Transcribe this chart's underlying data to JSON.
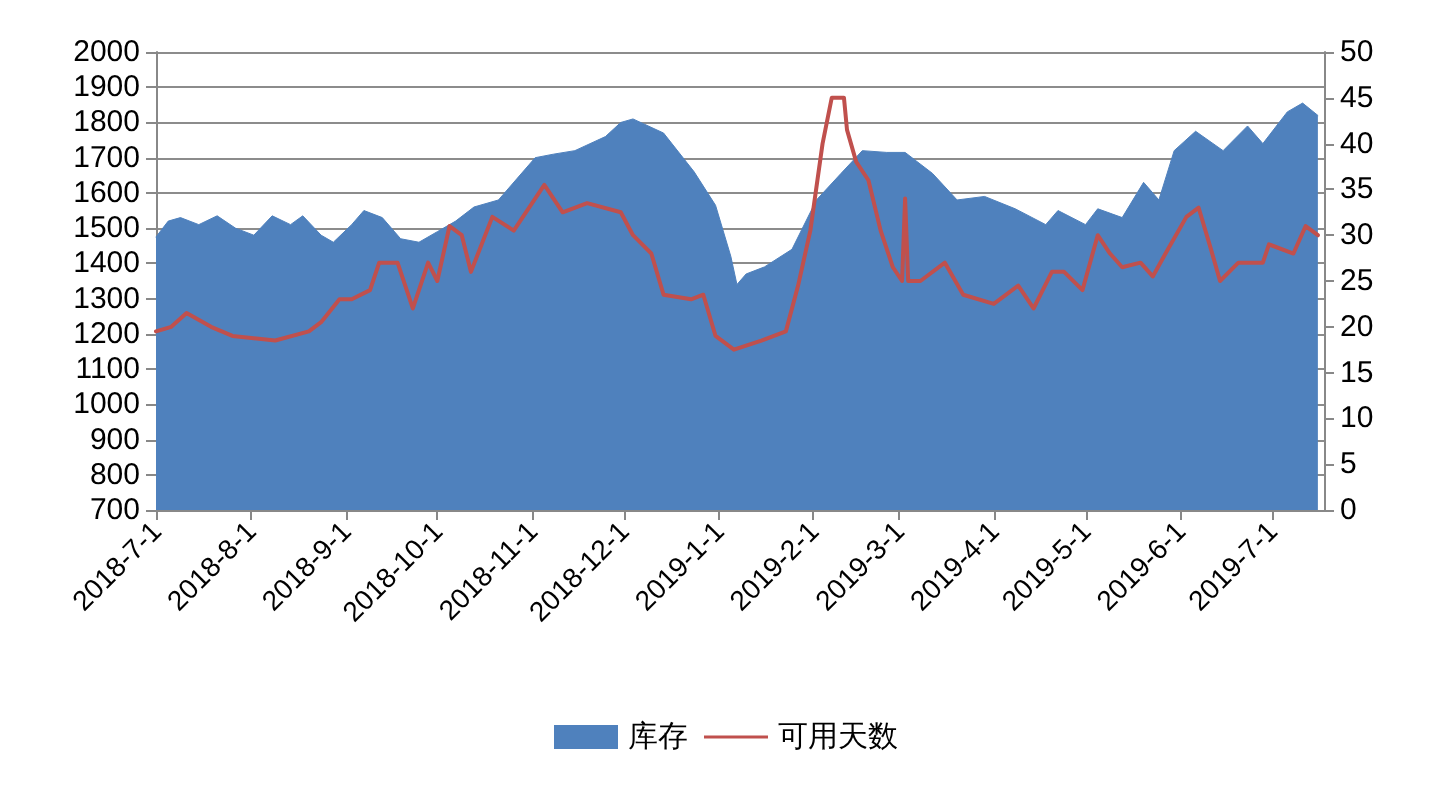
{
  "chart_data": {
    "type": "area",
    "xlim": [
      "2018-07-01",
      "2019-07-18"
    ],
    "xticks": [
      {
        "value": "2018-07-01",
        "label": "2018-7-1"
      },
      {
        "value": "2018-08-01",
        "label": "2018-8-1"
      },
      {
        "value": "2018-09-01",
        "label": "2018-9-1"
      },
      {
        "value": "2018-10-01",
        "label": "2018-10-1"
      },
      {
        "value": "2018-11-01",
        "label": "2018-11-1"
      },
      {
        "value": "2018-12-01",
        "label": "2018-12-1"
      },
      {
        "value": "2019-01-01",
        "label": "2019-1-1"
      },
      {
        "value": "2019-02-01",
        "label": "2019-2-1"
      },
      {
        "value": "2019-03-01",
        "label": "2019-3-1"
      },
      {
        "value": "2019-04-01",
        "label": "2019-4-1"
      },
      {
        "value": "2019-05-01",
        "label": "2019-5-1"
      },
      {
        "value": "2019-06-01",
        "label": "2019-6-1"
      },
      {
        "value": "2019-07-01",
        "label": "2019-7-1"
      }
    ],
    "ylim": [
      700,
      2000
    ],
    "yticks": [
      700,
      800,
      900,
      1000,
      1100,
      1200,
      1300,
      1400,
      1500,
      1600,
      1700,
      1800,
      1900,
      2000
    ],
    "y2lim": [
      0,
      50
    ],
    "y2ticks": [
      0,
      5,
      10,
      15,
      20,
      25,
      30,
      35,
      40,
      45,
      50
    ],
    "grid": "y",
    "legend": "bottom",
    "marker": "none",
    "line_style": "solid",
    "series": [
      {
        "name": "库存",
        "color": "#4f81bd",
        "x": [
          "2018-07-01",
          "2018-07-05",
          "2018-07-09",
          "2018-07-15",
          "2018-07-21",
          "2018-07-27",
          "2018-08-02",
          "2018-08-08",
          "2018-08-14",
          "2018-08-18",
          "2018-08-24",
          "2018-08-28",
          "2018-09-03",
          "2018-09-07",
          "2018-09-13",
          "2018-09-19",
          "2018-09-25",
          "2018-10-01",
          "2018-10-07",
          "2018-10-13",
          "2018-10-21",
          "2018-10-27",
          "2018-11-02",
          "2018-11-08",
          "2018-11-15",
          "2018-11-25",
          "2018-11-30",
          "2018-12-04",
          "2018-12-14",
          "2018-12-24",
          "2018-12-31",
          "2019-01-05",
          "2019-01-07",
          "2019-01-10",
          "2019-01-16",
          "2019-01-25",
          "2019-02-02",
          "2019-02-10",
          "2019-02-17",
          "2019-02-25",
          "2019-03-03",
          "2019-03-12",
          "2019-03-20",
          "2019-03-29",
          "2019-04-08",
          "2019-04-18",
          "2019-04-22",
          "2019-05-01",
          "2019-05-05",
          "2019-05-13",
          "2019-05-20",
          "2019-05-25",
          "2019-05-30",
          "2019-06-06",
          "2019-06-15",
          "2019-06-23",
          "2019-06-28",
          "2019-07-06",
          "2019-07-11",
          "2019-07-16"
        ],
        "values": [
          1475,
          1520,
          1530,
          1510,
          1535,
          1500,
          1480,
          1535,
          1510,
          1535,
          1480,
          1460,
          1510,
          1550,
          1530,
          1470,
          1460,
          1490,
          1520,
          1560,
          1580,
          1640,
          1700,
          1710,
          1720,
          1760,
          1800,
          1810,
          1770,
          1660,
          1565,
          1420,
          1340,
          1370,
          1390,
          1440,
          1580,
          1655,
          1720,
          1715,
          1715,
          1655,
          1580,
          1590,
          1555,
          1510,
          1550,
          1510,
          1555,
          1530,
          1630,
          1580,
          1720,
          1775,
          1720,
          1790,
          1740,
          1830,
          1855,
          1820
        ]
      },
      {
        "name": "可用天数",
        "type": "line",
        "axis": "y2",
        "color": "#c0504d",
        "x": [
          "2018-07-01",
          "2018-07-06",
          "2018-07-11",
          "2018-07-19",
          "2018-07-26",
          "2018-08-09",
          "2018-08-20",
          "2018-08-24",
          "2018-08-30",
          "2018-09-03",
          "2018-09-09",
          "2018-09-12",
          "2018-09-18",
          "2018-09-23",
          "2018-09-28",
          "2018-10-01",
          "2018-10-05",
          "2018-10-09",
          "2018-10-12",
          "2018-10-19",
          "2018-10-26",
          "2018-11-05",
          "2018-11-11",
          "2018-11-19",
          "2018-11-30",
          "2018-12-04",
          "2018-12-10",
          "2018-12-14",
          "2018-12-23",
          "2018-12-27",
          "2018-12-31",
          "2019-01-06",
          "2019-01-15",
          "2019-01-23",
          "2019-01-27",
          "2019-01-31",
          "2019-02-04",
          "2019-02-07",
          "2019-02-11",
          "2019-02-12",
          "2019-02-15",
          "2019-02-19",
          "2019-02-23",
          "2019-02-27",
          "2019-03-02",
          "2019-03-03",
          "2019-03-04",
          "2019-03-08",
          "2019-03-16",
          "2019-03-22",
          "2019-04-01",
          "2019-04-09",
          "2019-04-14",
          "2019-04-20",
          "2019-04-24",
          "2019-04-30",
          "2019-05-05",
          "2019-05-09",
          "2019-05-13",
          "2019-05-19",
          "2019-05-23",
          "2019-05-28",
          "2019-06-03",
          "2019-06-07",
          "2019-06-11",
          "2019-06-14",
          "2019-06-20",
          "2019-06-28",
          "2019-06-30",
          "2019-07-08",
          "2019-07-12",
          "2019-07-16"
        ],
        "values": [
          19.5,
          20,
          21.5,
          20,
          19,
          18.5,
          19.5,
          20.5,
          23,
          23,
          24,
          27,
          27,
          22,
          27,
          25,
          31,
          30,
          26,
          32,
          30.5,
          35.5,
          32.5,
          33.5,
          32.5,
          30,
          28,
          23.5,
          23,
          23.5,
          19,
          17.5,
          18.5,
          19.5,
          24.5,
          30.5,
          40,
          45,
          45,
          41.5,
          38,
          36,
          30.5,
          26.5,
          25,
          34,
          25,
          25,
          27,
          23.5,
          22.5,
          24.5,
          22,
          26,
          26,
          24,
          30,
          28,
          26.5,
          27,
          25.5,
          28.5,
          32,
          33,
          28.5,
          25,
          27,
          27,
          29,
          28,
          31,
          30
        ]
      }
    ]
  }
}
